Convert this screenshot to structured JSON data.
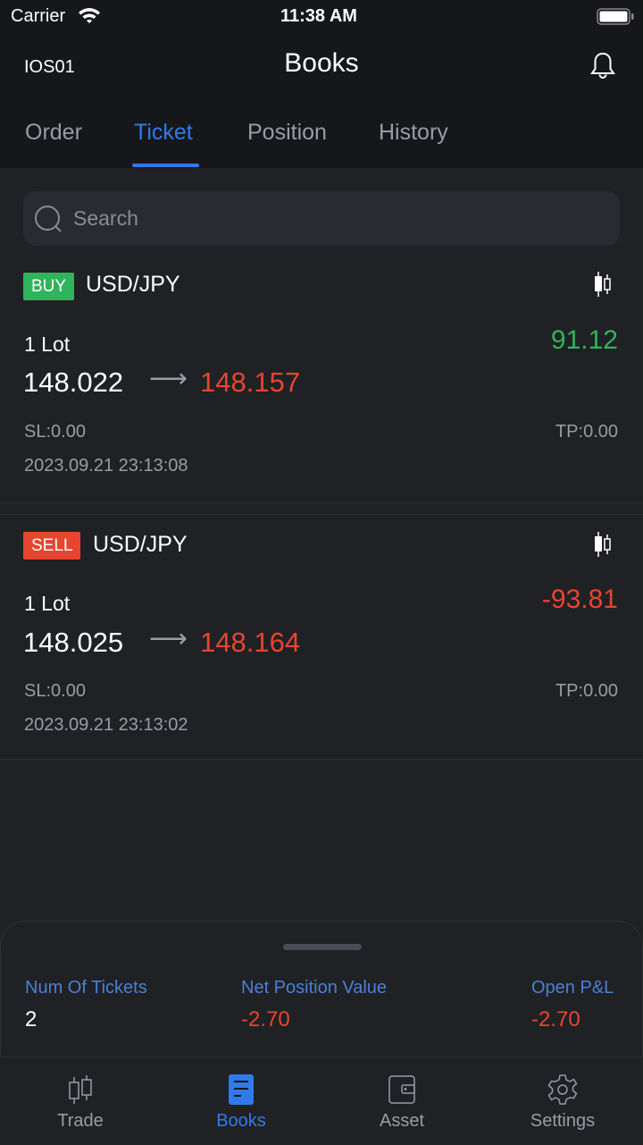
{
  "status_bar": {
    "carrier": "Carrier",
    "time": "11:38 AM"
  },
  "header": {
    "account": "IOS01",
    "title": "Books"
  },
  "tabs": [
    {
      "label": "Order"
    },
    {
      "label": "Ticket",
      "active": true
    },
    {
      "label": "Position"
    },
    {
      "label": "History"
    }
  ],
  "search": {
    "placeholder": "Search",
    "value": ""
  },
  "tickets": [
    {
      "side": "BUY",
      "side_color": "#2fb35c",
      "symbol": "USD/JPY",
      "lots": "1 Lot",
      "pnl": "91.12",
      "pnl_color": "#2fb35c",
      "open_price": "148.022",
      "arrow": "⟶",
      "current_price": "148.157",
      "sl": "SL:0.00",
      "tp": "TP:0.00",
      "time": "2023.09.21 23:13:08"
    },
    {
      "side": "SELL",
      "side_color": "#e8452f",
      "symbol": "USD/JPY",
      "lots": "1 Lot",
      "pnl": "-93.81",
      "pnl_color": "#e8452f",
      "open_price": "148.025",
      "arrow": "⟶",
      "current_price": "148.164",
      "sl": "SL:0.00",
      "tp": "TP:0.00",
      "time": "2023.09.21 23:13:02"
    }
  ],
  "summary": {
    "num_tickets_label": "Num Of Tickets",
    "num_tickets": "2",
    "net_position_label": "Net Position Value",
    "net_position": "-2.70",
    "open_pnl_label": "Open P&L",
    "open_pnl": "-2.70"
  },
  "bottom_nav": [
    {
      "label": "Trade",
      "icon": "candlestick-icon"
    },
    {
      "label": "Books",
      "icon": "document-icon",
      "active": true
    },
    {
      "label": "Asset",
      "icon": "wallet-icon"
    },
    {
      "label": "Settings",
      "icon": "gear-icon"
    }
  ],
  "colors": {
    "accent": "#2f7bea",
    "positive": "#2fb35c",
    "negative": "#e8452f"
  }
}
